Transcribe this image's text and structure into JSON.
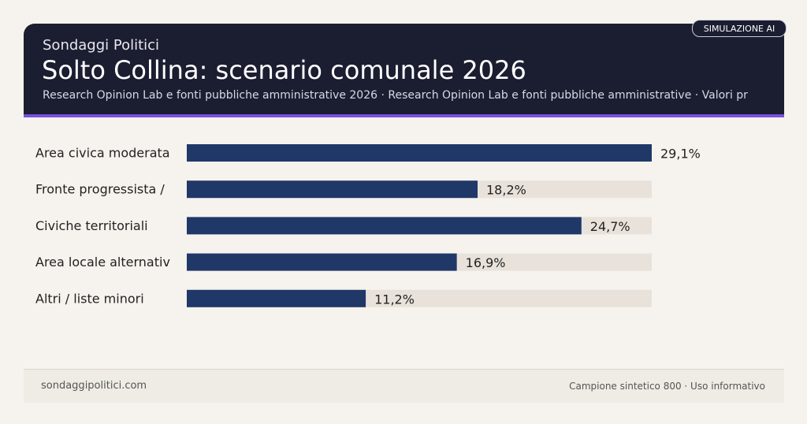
{
  "header": {
    "kicker": "Sondaggi Politici",
    "title": "Solto Collina: scenario comunale 2026",
    "subtitle": "Research Opinion Lab e fonti pubbliche amministrative 2026 · Research Opinion Lab e fonti pubbliche amministrative · Valori pr",
    "badge": "SIMULAZIONE AI"
  },
  "chart_data": {
    "type": "bar",
    "orientation": "horizontal",
    "categories": [
      "Area civica moderata",
      "Fronte progressista /",
      "Civiche territoriali",
      "Area locale alternativ",
      "Altri / liste minori"
    ],
    "values": [
      29.1,
      18.2,
      24.7,
      16.9,
      11.2
    ],
    "value_labels": [
      "29,1%",
      "18,2%",
      "24,7%",
      "16,9%",
      "11,2%"
    ],
    "color": "#1f3868",
    "track_color": "#e8e2db"
  },
  "footer": {
    "left": "sondaggipolitici.com",
    "right": "Campione sintetico 800 · Uso informativo"
  }
}
